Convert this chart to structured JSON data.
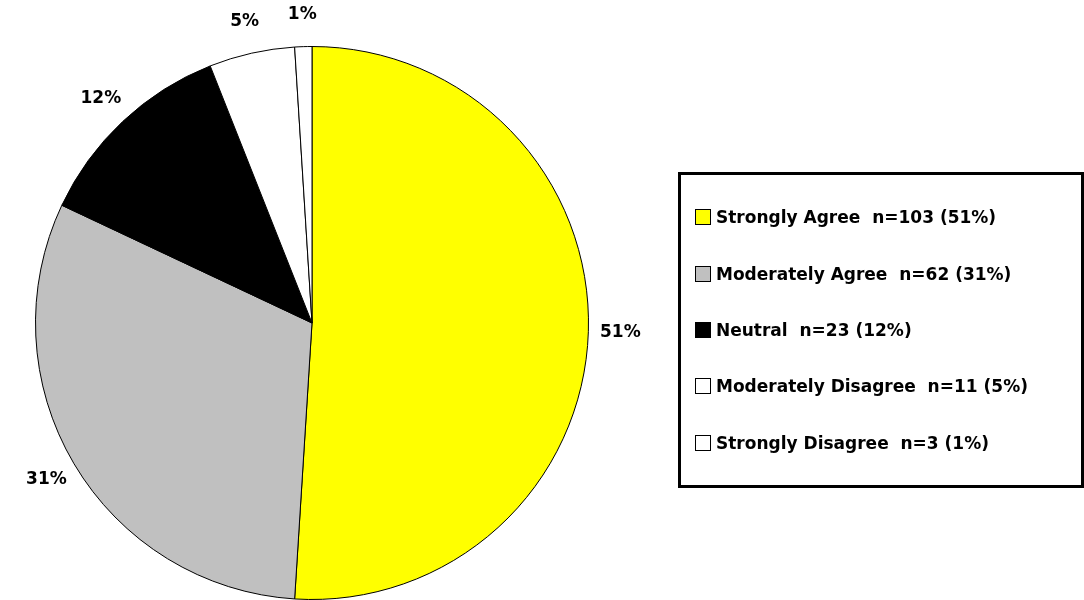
{
  "chart_data": {
    "type": "pie",
    "categories": [
      "Strongly Agree  n=103 (51%)",
      "Moderately Agree  n=62 (31%)",
      "Neutral  n=23 (12%)",
      "Moderately Disagree  n=11 (5%)",
      "Strongly Disagree  n=3 (1%)"
    ],
    "values": [
      51,
      31,
      12,
      5,
      1
    ],
    "colors": [
      "#ffff00",
      "#c0c0c0",
      "#000000",
      "#ffffff",
      "#ffffff"
    ],
    "value_labels": [
      "51%",
      "31%",
      "12%",
      "5%",
      "1%"
    ],
    "legend": "right"
  }
}
